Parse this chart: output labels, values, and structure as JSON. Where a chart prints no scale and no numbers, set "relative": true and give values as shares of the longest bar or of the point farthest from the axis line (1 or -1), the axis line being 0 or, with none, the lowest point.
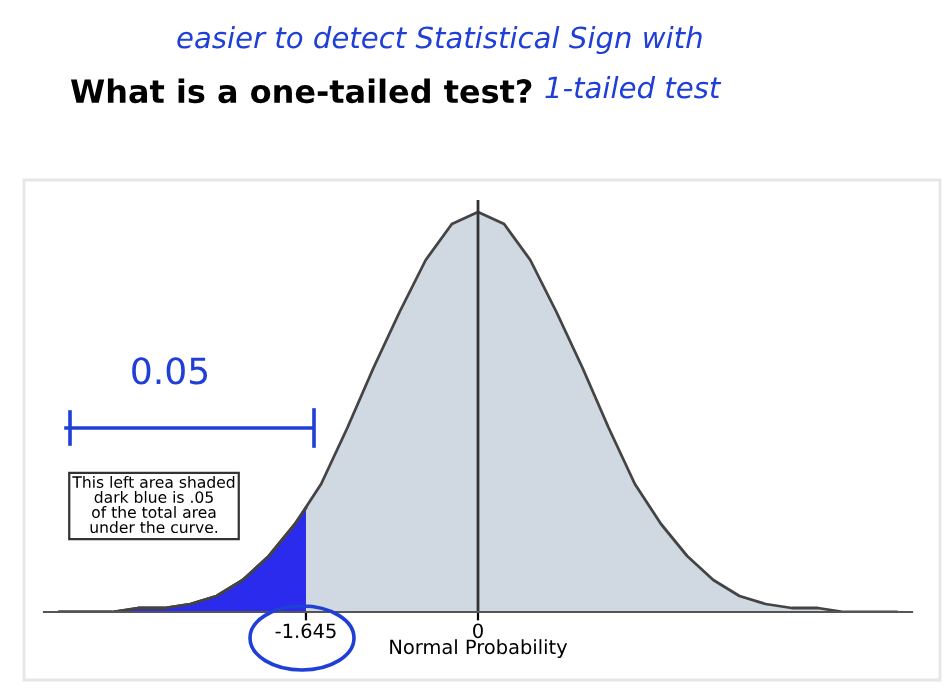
{
  "chart_data": {
    "type": "area",
    "title": "What is a one-tailed test?",
    "xlabel": "Normal Probability",
    "relative": true,
    "xlim": [
      -4.15,
      4.15
    ],
    "xticks": [
      -1.645,
      0
    ],
    "series": [
      {
        "color": "#d0d8e2",
        "x": [
          -4,
          -3.75,
          -3.5,
          -3.25,
          -3,
          -2.75,
          -2.5,
          -2.25,
          -2,
          -1.75,
          -1.5,
          -1.25,
          -1,
          -0.75,
          -0.5,
          -0.25,
          0,
          0.25,
          0.5,
          0.75,
          1,
          1.25,
          1.5,
          1.75,
          2,
          2.25,
          2.5,
          2.75,
          3,
          3.25,
          3.5,
          3.75,
          4
        ],
        "values": [
          0.0,
          0.0,
          0.0,
          0.01,
          0.01,
          0.02,
          0.04,
          0.08,
          0.14,
          0.22,
          0.32,
          0.46,
          0.61,
          0.75,
          0.88,
          0.97,
          1.0,
          0.97,
          0.88,
          0.75,
          0.61,
          0.46,
          0.32,
          0.22,
          0.14,
          0.08,
          0.04,
          0.02,
          0.01,
          0.01,
          0.0,
          0.0,
          0.0
        ]
      },
      {
        "color": "#2b2bee",
        "x": [
          -4,
          -3.75,
          -3.5,
          -3.25,
          -3,
          -2.75,
          -2.5,
          -2.25,
          -2,
          -1.75,
          -1.645
        ],
        "values": [
          0.0,
          0.0,
          0.0,
          0.01,
          0.01,
          0.02,
          0.04,
          0.08,
          0.14,
          0.22,
          0.26
        ]
      }
    ],
    "ref_lines": [
      {
        "axis": "x",
        "value": 0,
        "color": "#333333"
      }
    ],
    "annotations": [
      "easier to detect Statistical Sign with",
      "1-tailed test",
      "0.05",
      "This left area shaded\ndark blue is .05\nof the total area\nunder the curve."
    ],
    "grid": false
  }
}
